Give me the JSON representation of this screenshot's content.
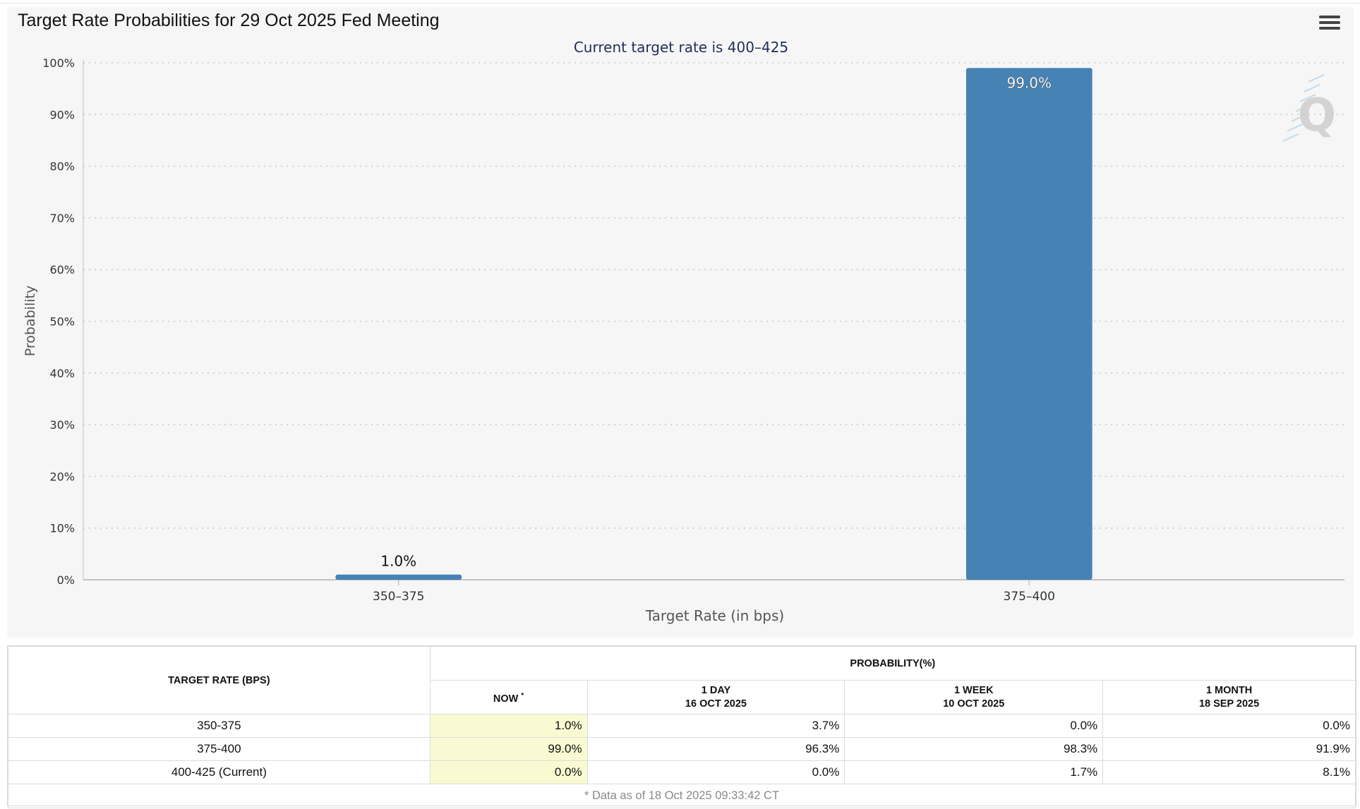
{
  "chart": {
    "title": "Target Rate Probabilities for 29 Oct 2025 Fed Meeting",
    "menu_icon": "hamburger-menu-icon",
    "watermark": "Q"
  },
  "chart_data": {
    "type": "bar",
    "title": "Target Rate Probabilities for 29 Oct 2025 Fed Meeting",
    "subtitle": "Current target rate is 400–425",
    "xlabel": "Target Rate (in bps)",
    "ylabel": "Probability",
    "categories": [
      "350–375",
      "375–400"
    ],
    "values": [
      1.0,
      99.0
    ],
    "data_labels": [
      "1.0%",
      "99.0%"
    ],
    "ylim": [
      0,
      100
    ],
    "yticks": [
      0,
      10,
      20,
      30,
      40,
      50,
      60,
      70,
      80,
      90,
      100
    ],
    "ytick_labels": [
      "0%",
      "10%",
      "20%",
      "30%",
      "40%",
      "50%",
      "60%",
      "70%",
      "80%",
      "90%",
      "100%"
    ],
    "grid": true,
    "bar_color": "#4682b4"
  },
  "table": {
    "rate_header": "TARGET RATE (BPS)",
    "prob_header": "PROBABILITY(%)",
    "columns": [
      {
        "line1": "NOW",
        "line2": "",
        "sup": "*"
      },
      {
        "line1": "1 DAY",
        "line2": "16 OCT 2025",
        "sup": ""
      },
      {
        "line1": "1 WEEK",
        "line2": "10 OCT 2025",
        "sup": ""
      },
      {
        "line1": "1 MONTH",
        "line2": "18 SEP 2025",
        "sup": ""
      }
    ],
    "rows": [
      {
        "rate": "350-375",
        "values": [
          "1.0%",
          "3.7%",
          "0.0%",
          "0.0%"
        ]
      },
      {
        "rate": "375-400",
        "values": [
          "99.0%",
          "96.3%",
          "98.3%",
          "91.9%"
        ]
      },
      {
        "rate": "400-425 (Current)",
        "values": [
          "0.0%",
          "0.0%",
          "1.7%",
          "8.1%"
        ]
      }
    ],
    "footnote": "* Data as of 18 Oct 2025 09:33:42 CT",
    "now_highlight_color": "#fafad2"
  }
}
